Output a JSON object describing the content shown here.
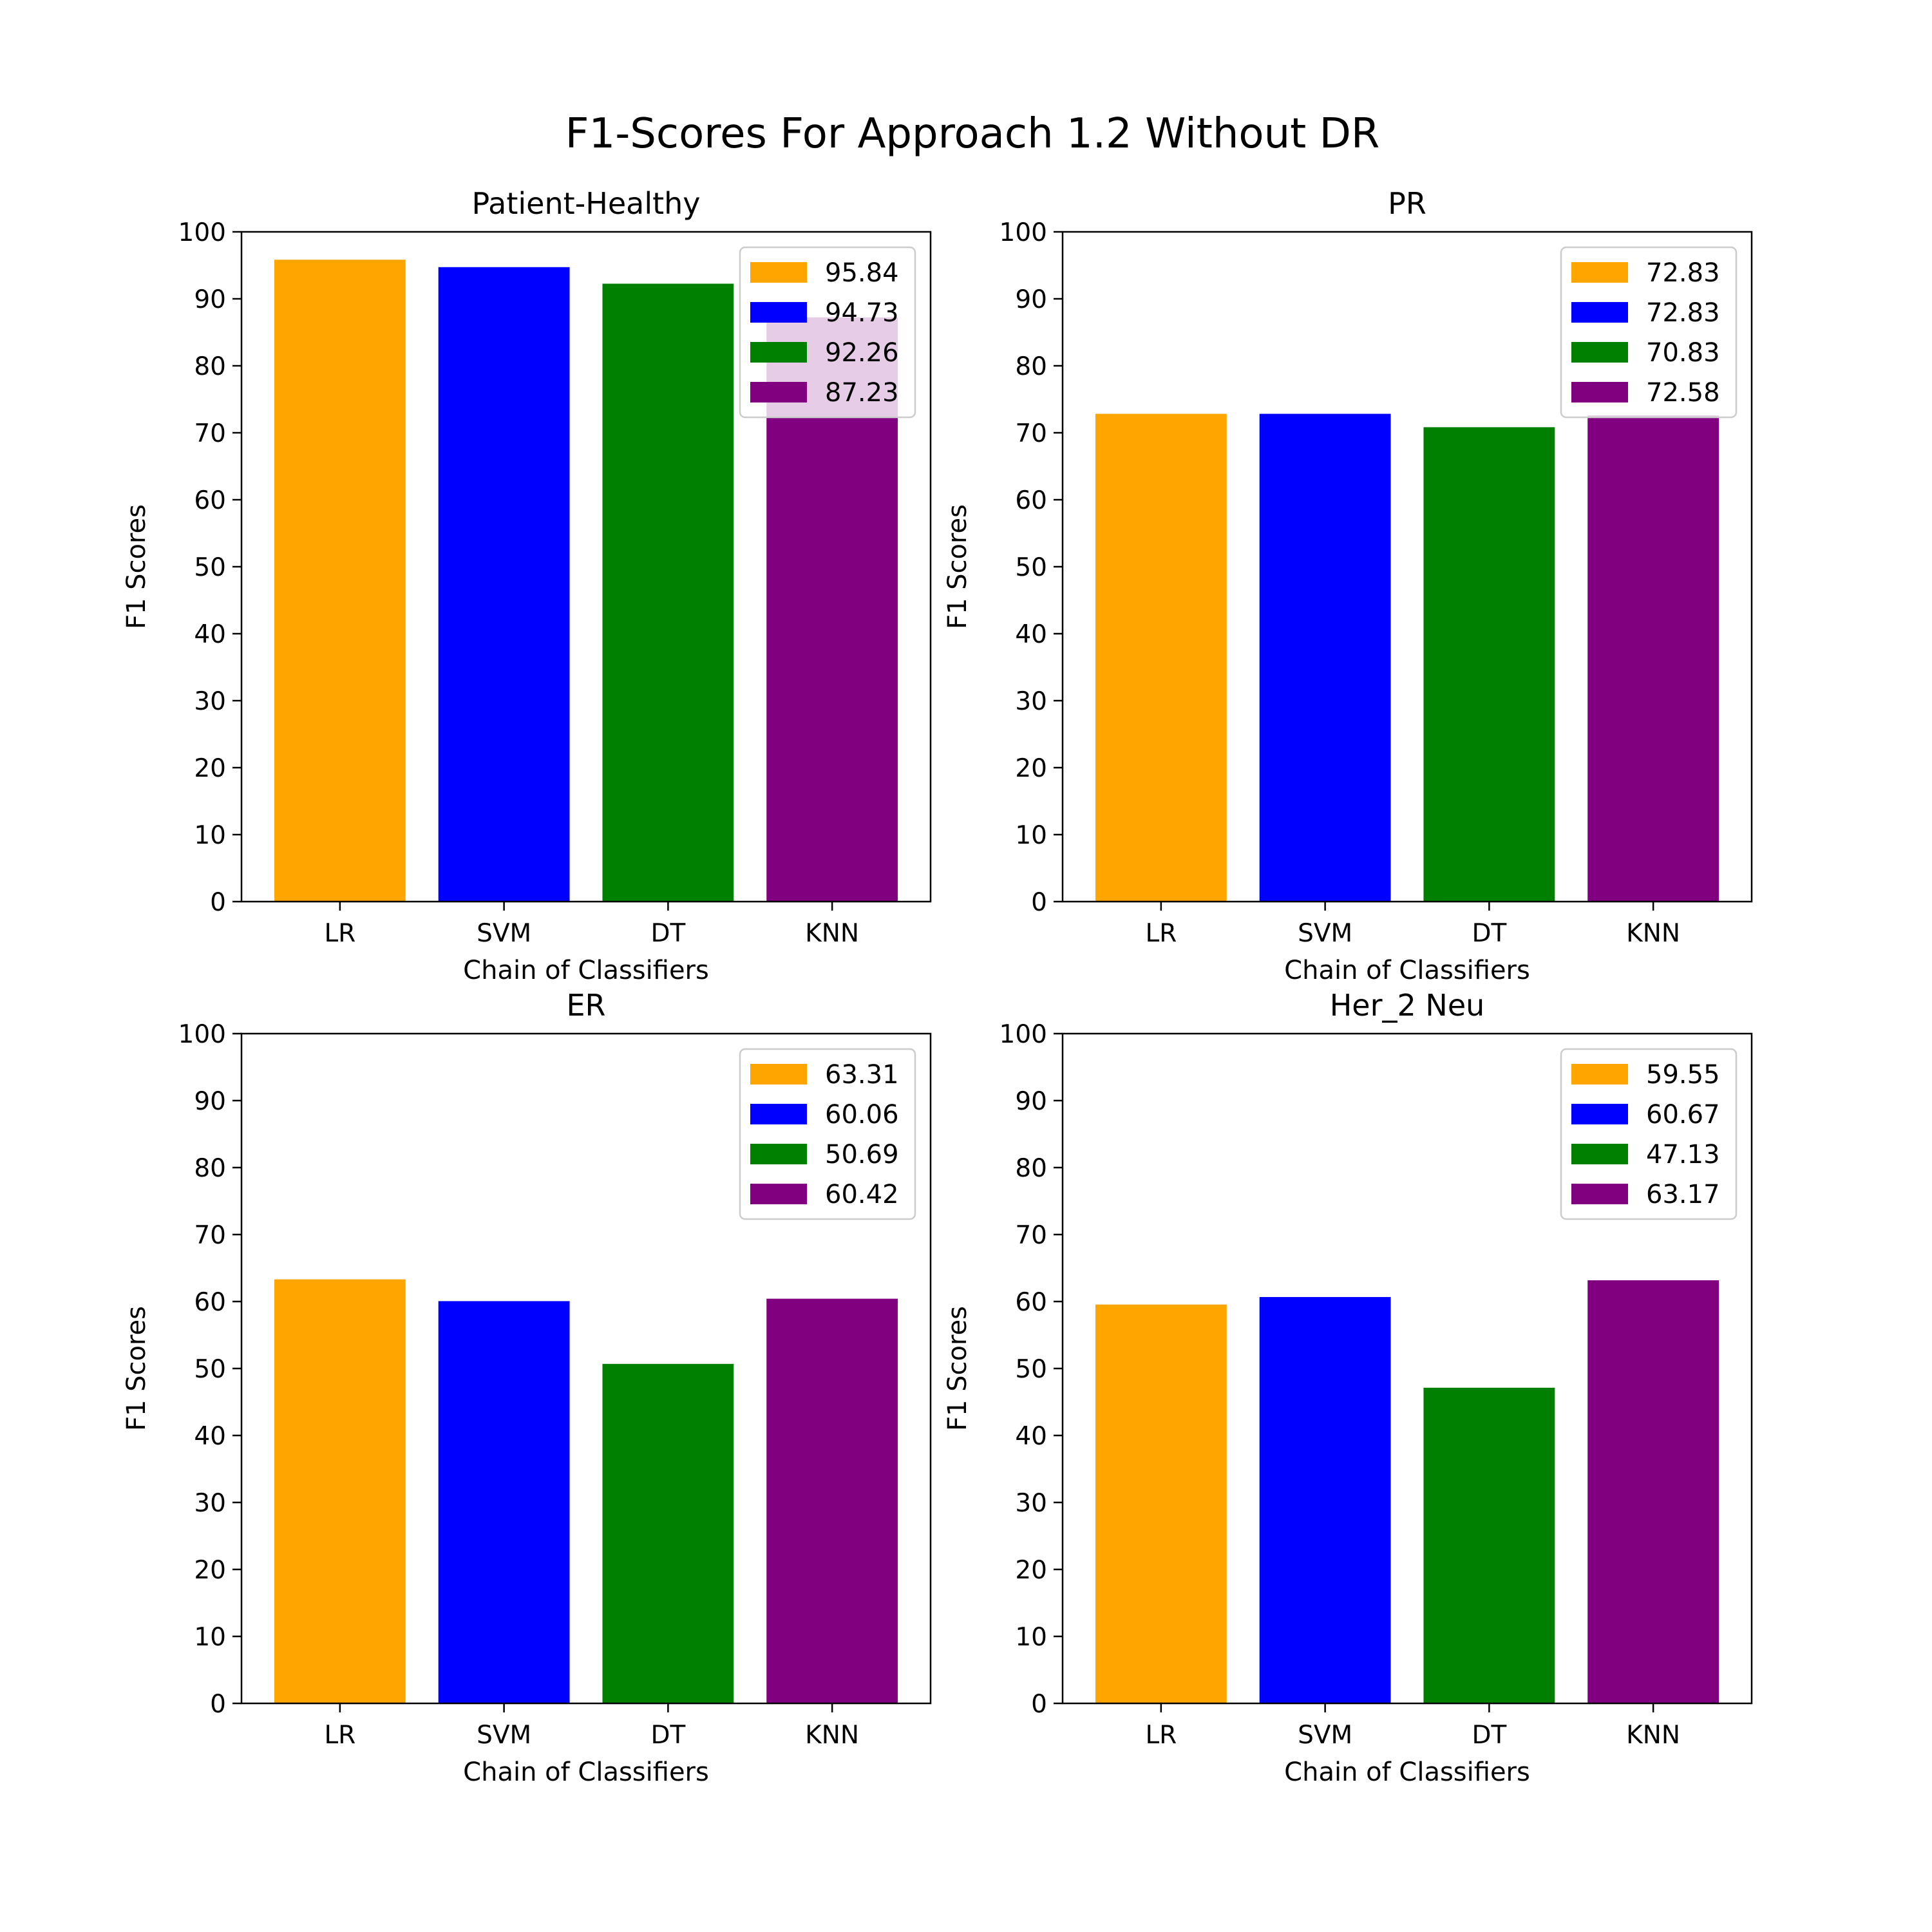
{
  "figure": {
    "title": "F1-Scores For Approach 1.2 Without DR"
  },
  "chart_data": [
    {
      "type": "bar",
      "title": "Patient-Healthy",
      "xlabel": "Chain of Classifiers",
      "ylabel": "F1 Scores",
      "categories": [
        "LR",
        "SVM",
        "DT",
        "KNN"
      ],
      "values": [
        95.84,
        94.73,
        92.26,
        87.23
      ],
      "colors": [
        "#ffa500",
        "#0000ff",
        "#008000",
        "#800080"
      ],
      "legend": [
        "95.84",
        "94.73",
        "92.26",
        "87.23"
      ],
      "legend_position": "top-right",
      "ylim": [
        0,
        100
      ],
      "yticks": [
        "0",
        "10",
        "20",
        "30",
        "40",
        "50",
        "60",
        "70",
        "80",
        "90",
        "100"
      ],
      "grid": false
    },
    {
      "type": "bar",
      "title": "PR",
      "xlabel": "Chain of Classifiers",
      "ylabel": "F1 Scores",
      "categories": [
        "LR",
        "SVM",
        "DT",
        "KNN"
      ],
      "values": [
        72.83,
        72.83,
        70.83,
        72.58
      ],
      "colors": [
        "#ffa500",
        "#0000ff",
        "#008000",
        "#800080"
      ],
      "legend": [
        "72.83",
        "72.83",
        "70.83",
        "72.58"
      ],
      "legend_position": "top-right",
      "ylim": [
        0,
        100
      ],
      "yticks": [
        "0",
        "10",
        "20",
        "30",
        "40",
        "50",
        "60",
        "70",
        "80",
        "90",
        "100"
      ],
      "grid": false
    },
    {
      "type": "bar",
      "title": "ER",
      "xlabel": "Chain of Classifiers",
      "ylabel": "F1 Scores",
      "categories": [
        "LR",
        "SVM",
        "DT",
        "KNN"
      ],
      "values": [
        63.31,
        60.06,
        50.69,
        60.42
      ],
      "colors": [
        "#ffa500",
        "#0000ff",
        "#008000",
        "#800080"
      ],
      "legend": [
        "63.31",
        "60.06",
        "50.69",
        "60.42"
      ],
      "legend_position": "top-right",
      "ylim": [
        0,
        100
      ],
      "yticks": [
        "0",
        "10",
        "20",
        "30",
        "40",
        "50",
        "60",
        "70",
        "80",
        "90",
        "100"
      ],
      "grid": false
    },
    {
      "type": "bar",
      "title": "Her_2 Neu",
      "xlabel": "Chain of Classifiers",
      "ylabel": "F1 Scores",
      "categories": [
        "LR",
        "SVM",
        "DT",
        "KNN"
      ],
      "values": [
        59.55,
        60.67,
        47.13,
        63.17
      ],
      "colors": [
        "#ffa500",
        "#0000ff",
        "#008000",
        "#800080"
      ],
      "legend": [
        "59.55",
        "60.67",
        "47.13",
        "63.17"
      ],
      "legend_position": "top-right",
      "ylim": [
        0,
        100
      ],
      "yticks": [
        "0",
        "10",
        "20",
        "30",
        "40",
        "50",
        "60",
        "70",
        "80",
        "90",
        "100"
      ],
      "grid": false
    }
  ]
}
